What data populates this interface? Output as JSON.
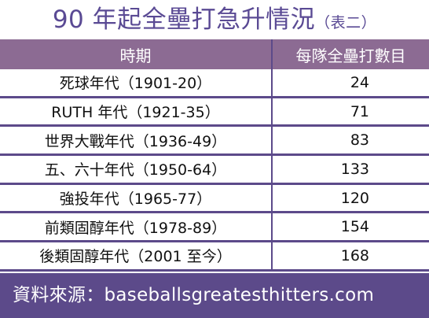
{
  "title": "90 年起全壘打急升情況",
  "subtitle": "（表二）",
  "table": {
    "headers": [
      "時期",
      "每隊全壘打數目"
    ],
    "rows": [
      {
        "period": "死球年代（1901-20）",
        "value": "24"
      },
      {
        "period": "RUTH 年代（1921-35）",
        "value": "71"
      },
      {
        "period": "世界大戰年代（1936-49）",
        "value": "83"
      },
      {
        "period": "五、六十年代（1950-64）",
        "value": "133"
      },
      {
        "period": "強投年代（1965-77）",
        "value": "120"
      },
      {
        "period": "前類固醇年代（1978-89）",
        "value": "154"
      },
      {
        "period": "後類固醇年代（2001 至今）",
        "value": "168"
      }
    ]
  },
  "source": "資料來源：baseballsgreatesthitters.com",
  "colors": {
    "title": "#5a4a94",
    "header_bg": "#8c6b93",
    "rule": "#5c4a8a",
    "footer_bg": "#5c4a8a"
  }
}
